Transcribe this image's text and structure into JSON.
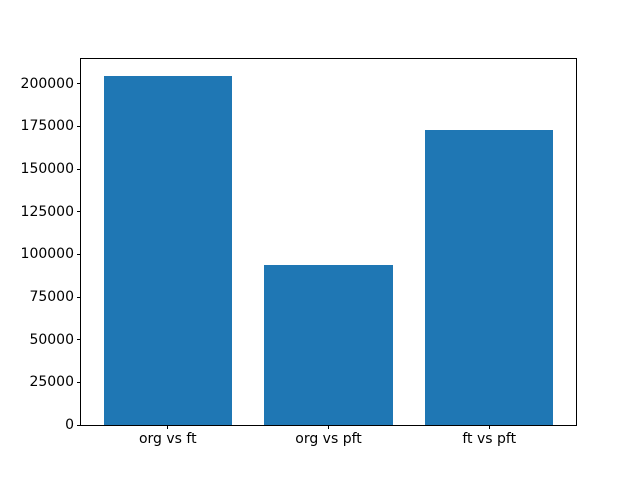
{
  "figure": {
    "background_color": "#ffffff",
    "axis_color": "#000000",
    "text_color": "#000000",
    "bar_color": "#1f77b4"
  },
  "chart_data": {
    "type": "bar",
    "title": "",
    "xlabel": "",
    "ylabel": "",
    "categories": [
      "org vs ft",
      "org vs pft",
      "ft vs pft"
    ],
    "values": [
      204500,
      94000,
      173000
    ],
    "ylim": [
      0,
      214500
    ],
    "yticks": [
      0,
      25000,
      50000,
      75000,
      100000,
      125000,
      150000,
      175000,
      200000
    ],
    "grid": false,
    "legend": null,
    "bar_width_fraction": 0.8,
    "xlim": [
      -0.54,
      2.54
    ]
  }
}
